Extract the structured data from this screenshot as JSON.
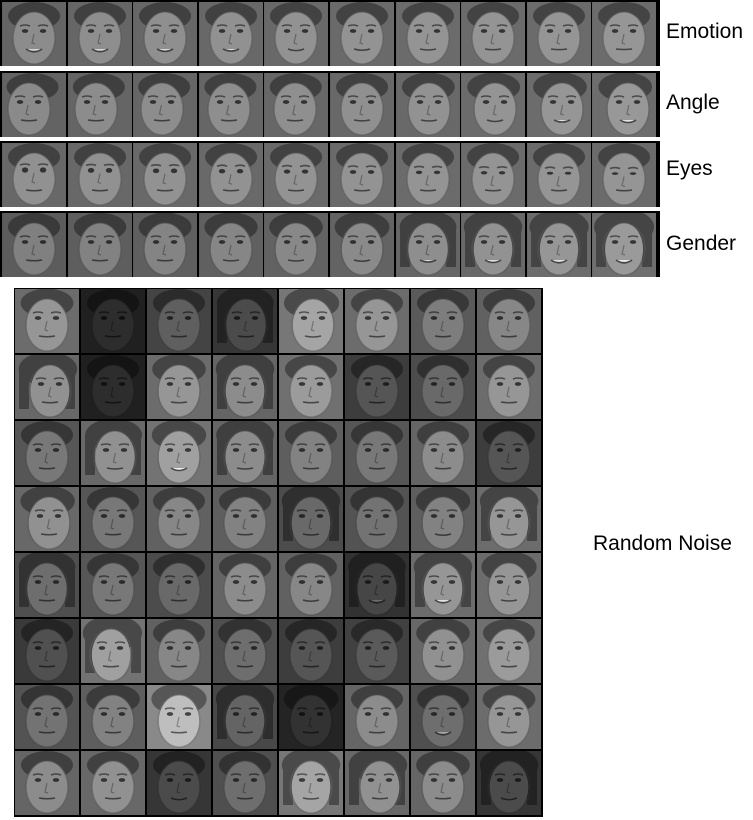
{
  "strips": [
    {
      "label": "Emotion",
      "cells": [
        {
          "tone": 140,
          "smile": 0.9,
          "angle": 0,
          "eyes": 0.5,
          "fem": 0.0
        },
        {
          "tone": 142,
          "smile": 0.85,
          "angle": 0,
          "eyes": 0.5,
          "fem": 0.0
        },
        {
          "tone": 143,
          "smile": 0.75,
          "angle": 0,
          "eyes": 0.5,
          "fem": 0.0
        },
        {
          "tone": 145,
          "smile": 0.6,
          "angle": 0,
          "eyes": 0.5,
          "fem": 0.0
        },
        {
          "tone": 146,
          "smile": 0.45,
          "angle": 0,
          "eyes": 0.5,
          "fem": 0.0
        },
        {
          "tone": 147,
          "smile": 0.3,
          "angle": 0,
          "eyes": 0.5,
          "fem": 0.0
        },
        {
          "tone": 148,
          "smile": 0.2,
          "angle": 0,
          "eyes": 0.5,
          "fem": 0.0
        },
        {
          "tone": 148,
          "smile": 0.1,
          "angle": 0,
          "eyes": 0.5,
          "fem": 0.0
        },
        {
          "tone": 149,
          "smile": 0.05,
          "angle": 0,
          "eyes": 0.5,
          "fem": 0.0
        },
        {
          "tone": 150,
          "smile": 0.0,
          "angle": 0,
          "eyes": 0.5,
          "fem": 0.0
        }
      ]
    },
    {
      "label": "Angle",
      "cells": [
        {
          "tone": 138,
          "smile": 0.1,
          "angle": -0.5,
          "eyes": 0.5,
          "fem": 0.0
        },
        {
          "tone": 140,
          "smile": 0.1,
          "angle": -0.4,
          "eyes": 0.5,
          "fem": 0.0
        },
        {
          "tone": 141,
          "smile": 0.1,
          "angle": -0.3,
          "eyes": 0.5,
          "fem": 0.0
        },
        {
          "tone": 142,
          "smile": 0.1,
          "angle": -0.2,
          "eyes": 0.5,
          "fem": 0.0
        },
        {
          "tone": 143,
          "smile": 0.1,
          "angle": -0.1,
          "eyes": 0.5,
          "fem": 0.0
        },
        {
          "tone": 144,
          "smile": 0.15,
          "angle": 0.0,
          "eyes": 0.5,
          "fem": 0.0
        },
        {
          "tone": 146,
          "smile": 0.2,
          "angle": 0.1,
          "eyes": 0.5,
          "fem": 0.1
        },
        {
          "tone": 148,
          "smile": 0.4,
          "angle": 0.2,
          "eyes": 0.5,
          "fem": 0.1
        },
        {
          "tone": 150,
          "smile": 0.6,
          "angle": 0.3,
          "eyes": 0.5,
          "fem": 0.2
        },
        {
          "tone": 152,
          "smile": 0.8,
          "angle": 0.4,
          "eyes": 0.5,
          "fem": 0.2
        }
      ]
    },
    {
      "label": "Eyes",
      "cells": [
        {
          "tone": 145,
          "smile": 0.1,
          "angle": 0,
          "eyes": 1.0,
          "fem": 0.0
        },
        {
          "tone": 145,
          "smile": 0.1,
          "angle": 0,
          "eyes": 0.9,
          "fem": 0.0
        },
        {
          "tone": 146,
          "smile": 0.1,
          "angle": 0,
          "eyes": 0.8,
          "fem": 0.0
        },
        {
          "tone": 146,
          "smile": 0.1,
          "angle": 0,
          "eyes": 0.7,
          "fem": 0.0
        },
        {
          "tone": 147,
          "smile": 0.1,
          "angle": 0,
          "eyes": 0.6,
          "fem": 0.0
        },
        {
          "tone": 147,
          "smile": 0.1,
          "angle": 0,
          "eyes": 0.5,
          "fem": 0.0
        },
        {
          "tone": 148,
          "smile": 0.1,
          "angle": 0,
          "eyes": 0.4,
          "fem": 0.0
        },
        {
          "tone": 148,
          "smile": 0.1,
          "angle": 0,
          "eyes": 0.3,
          "fem": 0.0
        },
        {
          "tone": 149,
          "smile": 0.1,
          "angle": 0,
          "eyes": 0.2,
          "fem": 0.0
        },
        {
          "tone": 149,
          "smile": 0.1,
          "angle": 0,
          "eyes": 0.1,
          "fem": 0.0
        }
      ]
    },
    {
      "label": "Gender",
      "cells": [
        {
          "tone": 128,
          "smile": 0.1,
          "angle": 0,
          "eyes": 0.5,
          "fem": 0.0
        },
        {
          "tone": 130,
          "smile": 0.1,
          "angle": 0,
          "eyes": 0.5,
          "fem": 0.05
        },
        {
          "tone": 132,
          "smile": 0.1,
          "angle": 0,
          "eyes": 0.5,
          "fem": 0.1
        },
        {
          "tone": 134,
          "smile": 0.15,
          "angle": 0,
          "eyes": 0.5,
          "fem": 0.15
        },
        {
          "tone": 136,
          "smile": 0.2,
          "angle": 0,
          "eyes": 0.5,
          "fem": 0.2
        },
        {
          "tone": 138,
          "smile": 0.3,
          "angle": 0,
          "eyes": 0.5,
          "fem": 0.35
        },
        {
          "tone": 142,
          "smile": 0.6,
          "angle": 0,
          "eyes": 0.5,
          "fem": 0.6
        },
        {
          "tone": 146,
          "smile": 0.8,
          "angle": 0,
          "eyes": 0.5,
          "fem": 0.8
        },
        {
          "tone": 150,
          "smile": 0.9,
          "angle": 0,
          "eyes": 0.5,
          "fem": 0.9
        },
        {
          "tone": 154,
          "smile": 0.95,
          "angle": 0,
          "eyes": 0.5,
          "fem": 1.0
        }
      ]
    }
  ],
  "grid_label": "Random Noise",
  "grid_rows": [
    [
      {
        "tone": 150,
        "smile": 0.1,
        "angle": 0,
        "fem": 0.1
      },
      {
        "tone": 45,
        "smile": 0.1,
        "angle": 0,
        "fem": 0.0
      },
      {
        "tone": 95,
        "smile": 0.1,
        "angle": 0,
        "fem": 0.0
      },
      {
        "tone": 75,
        "smile": 0.1,
        "angle": 0.1,
        "fem": 0.6
      },
      {
        "tone": 165,
        "smile": 0.2,
        "angle": 0.2,
        "fem": 0.4
      },
      {
        "tone": 150,
        "smile": 0.1,
        "angle": 0,
        "fem": 0.0
      },
      {
        "tone": 125,
        "smile": 0.1,
        "angle": 0,
        "fem": 0.0
      },
      {
        "tone": 135,
        "smile": 0.1,
        "angle": 0,
        "fem": 0.0
      }
    ],
    [
      {
        "tone": 145,
        "smile": 0.1,
        "angle": 0.3,
        "fem": 0.8
      },
      {
        "tone": 45,
        "smile": 0.1,
        "angle": 0,
        "fem": 0.0
      },
      {
        "tone": 150,
        "smile": 0.1,
        "angle": 0,
        "fem": 0.2
      },
      {
        "tone": 140,
        "smile": 0.1,
        "angle": 0,
        "fem": 0.8
      },
      {
        "tone": 155,
        "smile": 0.1,
        "angle": 0,
        "fem": 0.0
      },
      {
        "tone": 85,
        "smile": 0.1,
        "angle": 0,
        "fem": 0.0
      },
      {
        "tone": 105,
        "smile": 0.1,
        "angle": 0,
        "fem": 0.0
      },
      {
        "tone": 150,
        "smile": 0.1,
        "angle": 0,
        "fem": 0.0
      }
    ],
    [
      {
        "tone": 120,
        "smile": 0.1,
        "angle": 0,
        "fem": 0.0
      },
      {
        "tone": 145,
        "smile": 0.2,
        "angle": 0.2,
        "fem": 0.6
      },
      {
        "tone": 160,
        "smile": 0.8,
        "angle": 0,
        "fem": 0.3
      },
      {
        "tone": 140,
        "smile": 0.2,
        "angle": 0,
        "fem": 0.7
      },
      {
        "tone": 130,
        "smile": 0.1,
        "angle": 0,
        "fem": 0.0
      },
      {
        "tone": 120,
        "smile": 0.1,
        "angle": 0,
        "fem": 0.0
      },
      {
        "tone": 140,
        "smile": 0.1,
        "angle": 0,
        "fem": 0.0
      },
      {
        "tone": 85,
        "smile": 0.2,
        "angle": 0,
        "fem": 0.0
      }
    ],
    [
      {
        "tone": 145,
        "smile": 0.1,
        "angle": 0.2,
        "fem": 0.3
      },
      {
        "tone": 120,
        "smile": 0.1,
        "angle": 0,
        "fem": 0.0
      },
      {
        "tone": 135,
        "smile": 0.1,
        "angle": 0,
        "fem": 0.0
      },
      {
        "tone": 130,
        "smile": 0.1,
        "angle": 0,
        "fem": 0.0
      },
      {
        "tone": 105,
        "smile": 0.2,
        "angle": 0,
        "fem": 0.8
      },
      {
        "tone": 115,
        "smile": 0.1,
        "angle": 0,
        "fem": 0.2
      },
      {
        "tone": 130,
        "smile": 0.3,
        "angle": 0,
        "fem": 0.3
      },
      {
        "tone": 150,
        "smile": 0.2,
        "angle": 0,
        "fem": 0.8
      }
    ],
    [
      {
        "tone": 110,
        "smile": 0.1,
        "angle": 0,
        "fem": 0.6
      },
      {
        "tone": 120,
        "smile": 0.1,
        "angle": 0,
        "fem": 0.0
      },
      {
        "tone": 105,
        "smile": 0.1,
        "angle": 0,
        "fem": 0.0
      },
      {
        "tone": 140,
        "smile": 0.1,
        "angle": 0,
        "fem": 0.0
      },
      {
        "tone": 135,
        "smile": 0.3,
        "angle": 0,
        "fem": 0.0
      },
      {
        "tone": 70,
        "smile": 0.9,
        "angle": 0,
        "fem": 0.7
      },
      {
        "tone": 150,
        "smile": 0.9,
        "angle": 0,
        "fem": 0.8
      },
      {
        "tone": 150,
        "smile": 0.2,
        "angle": 0,
        "fem": 0.4
      }
    ],
    [
      {
        "tone": 80,
        "smile": 0.1,
        "angle": 0,
        "fem": 0.0
      },
      {
        "tone": 160,
        "smile": 0.1,
        "angle": -0.2,
        "fem": 0.9
      },
      {
        "tone": 135,
        "smile": 0.1,
        "angle": 0,
        "fem": 0.0
      },
      {
        "tone": 110,
        "smile": 0.1,
        "angle": 0,
        "fem": 0.2
      },
      {
        "tone": 85,
        "smile": 0.1,
        "angle": 0,
        "fem": 0.0
      },
      {
        "tone": 90,
        "smile": 0.1,
        "angle": 0,
        "fem": 0.0
      },
      {
        "tone": 145,
        "smile": 0.1,
        "angle": 0,
        "fem": 0.2
      },
      {
        "tone": 155,
        "smile": 0.1,
        "angle": 0,
        "fem": 0.0
      }
    ],
    [
      {
        "tone": 115,
        "smile": 0.1,
        "angle": 0,
        "fem": 0.0
      },
      {
        "tone": 130,
        "smile": 0.1,
        "angle": 0,
        "fem": 0.2
      },
      {
        "tone": 190,
        "smile": 0.1,
        "angle": 0,
        "fem": 0.4
      },
      {
        "tone": 100,
        "smile": 0.1,
        "angle": 0,
        "fem": 0.8
      },
      {
        "tone": 50,
        "smile": 0.1,
        "angle": 0,
        "fem": 0.3
      },
      {
        "tone": 140,
        "smile": 0.1,
        "angle": 0,
        "fem": 0.0
      },
      {
        "tone": 110,
        "smile": 0.9,
        "angle": 0,
        "fem": 0.0
      },
      {
        "tone": 150,
        "smile": 0.1,
        "angle": 0,
        "fem": 0.1
      }
    ],
    [
      {
        "tone": 140,
        "smile": 0.1,
        "angle": 0,
        "fem": 0.0
      },
      {
        "tone": 145,
        "smile": 0.1,
        "angle": 0,
        "fem": 0.0
      },
      {
        "tone": 75,
        "smile": 0.5,
        "angle": 0,
        "fem": 0.0
      },
      {
        "tone": 110,
        "smile": 0.1,
        "angle": 0,
        "fem": 0.0
      },
      {
        "tone": 165,
        "smile": 0.2,
        "angle": 0,
        "fem": 0.8
      },
      {
        "tone": 145,
        "smile": 0.1,
        "angle": 0.3,
        "fem": 0.8
      },
      {
        "tone": 140,
        "smile": 0.1,
        "angle": 0,
        "fem": 0.2
      },
      {
        "tone": 75,
        "smile": 0.5,
        "angle": 0,
        "fem": 0.8
      }
    ]
  ]
}
